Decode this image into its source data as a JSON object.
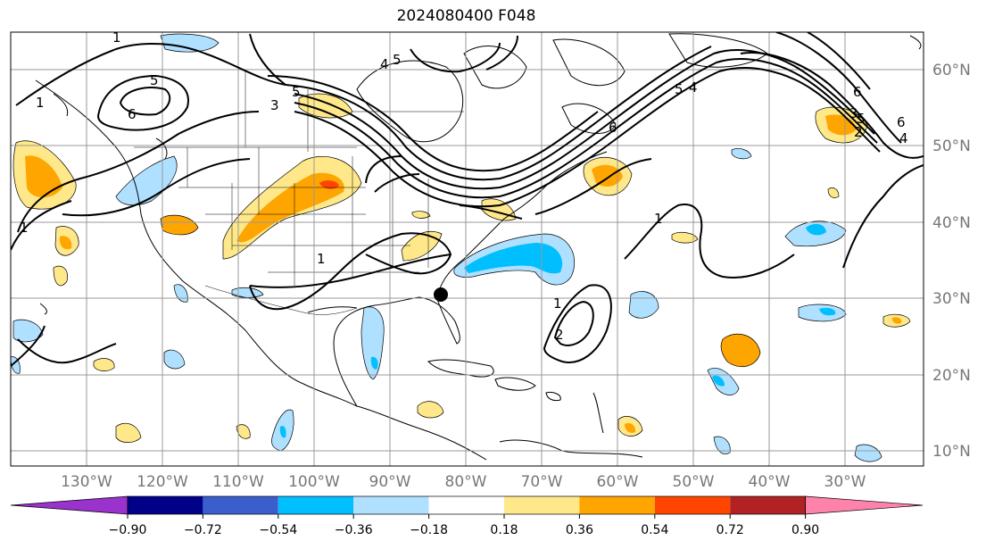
{
  "title": "2024080400 F048",
  "map": {
    "longitude_labels": [
      "130°W",
      "120°W",
      "110°W",
      "100°W",
      "90°W",
      "80°W",
      "70°W",
      "60°W",
      "50°W",
      "40°W",
      "30°W"
    ],
    "latitude_labels": [
      "60°N",
      "50°N",
      "40°N",
      "30°N",
      "20°N",
      "10°N"
    ],
    "gridlines": true,
    "contour_labels": [
      "1",
      "5",
      "6",
      "3",
      "5",
      "4",
      "5",
      "6",
      "5",
      "4",
      "6",
      "1",
      "1",
      "1",
      "1",
      "2",
      "1",
      "3",
      "2",
      "5",
      "6",
      "4"
    ],
    "marker": "black-dot-gulf-coast"
  },
  "colorbar": {
    "ticks": [
      "−0.90",
      "−0.72",
      "−0.54",
      "−0.36",
      "−0.18",
      "0.18",
      "0.36",
      "0.54",
      "0.72",
      "0.90"
    ],
    "colors": [
      "#9a32cd",
      "#000088",
      "#3a5fcd",
      "#00bfff",
      "#b0e0ff",
      "#ffffff",
      "#ffe88a",
      "#ffa500",
      "#ff4500",
      "#b22222",
      "#ff82ab"
    ]
  }
}
